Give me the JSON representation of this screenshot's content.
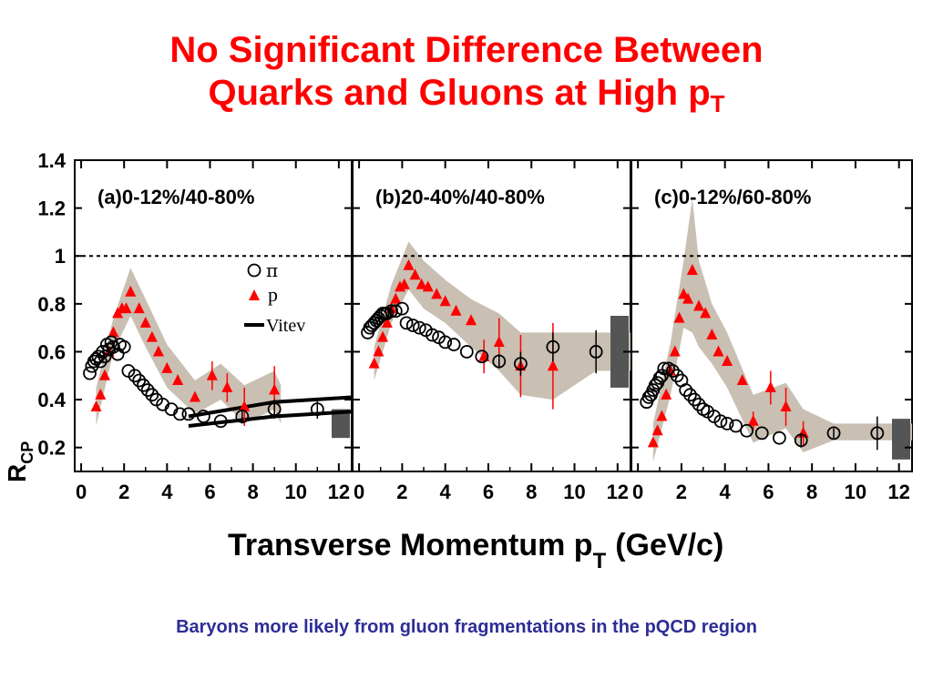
{
  "slide": {
    "title_line1": "No Significant Difference Between",
    "title_line2": "Quarks and Gluons at High p",
    "title_sub": "T",
    "footer": "Baryons more likely from gluon fragmentations in the pQCD region"
  },
  "chart_data": {
    "type": "scatter",
    "xlabel_main": "Transverse Momentum p",
    "xlabel_sub": "T",
    "xlabel_unit": "(GeV/c)",
    "ylabel_main": "R",
    "ylabel_sub": "CP",
    "xlim": [
      -0.3,
      12.6
    ],
    "ylim": [
      0.1,
      1.4
    ],
    "xticks": [
      0,
      2,
      4,
      6,
      8,
      10,
      12
    ],
    "yticks": [
      0.2,
      0.4,
      0.6,
      0.8,
      1,
      1.2,
      1.4
    ],
    "ytick_labels": [
      "0.2",
      "0.4",
      "0.6",
      "0.8",
      "1",
      "1.2",
      "1.4"
    ],
    "reference_line_y": 1.0,
    "colors": {
      "pion": "#000000",
      "proton": "#ff0000",
      "band": "#c9bfb2",
      "norm_box": "#555555",
      "vitev": "#000000"
    },
    "legend": {
      "pion_label": "π",
      "proton_label": "p",
      "vitev_label": "Vitev"
    },
    "panels": [
      {
        "label": "(a)0-12%/40-80%",
        "norm_box": [
          0.24,
          0.36
        ],
        "pion": [
          {
            "x": 0.4,
            "y": 0.51
          },
          {
            "x": 0.5,
            "y": 0.54
          },
          {
            "x": 0.6,
            "y": 0.56
          },
          {
            "x": 0.7,
            "y": 0.57
          },
          {
            "x": 0.8,
            "y": 0.58
          },
          {
            "x": 0.9,
            "y": 0.56
          },
          {
            "x": 1.0,
            "y": 0.6
          },
          {
            "x": 1.1,
            "y": 0.58
          },
          {
            "x": 1.2,
            "y": 0.63
          },
          {
            "x": 1.3,
            "y": 0.61
          },
          {
            "x": 1.4,
            "y": 0.64
          },
          {
            "x": 1.5,
            "y": 0.62
          },
          {
            "x": 1.7,
            "y": 0.59
          },
          {
            "x": 1.8,
            "y": 0.63
          },
          {
            "x": 2.0,
            "y": 0.62
          },
          {
            "x": 2.2,
            "y": 0.52
          },
          {
            "x": 2.5,
            "y": 0.5
          },
          {
            "x": 2.7,
            "y": 0.48
          },
          {
            "x": 2.9,
            "y": 0.46
          },
          {
            "x": 3.1,
            "y": 0.44
          },
          {
            "x": 3.3,
            "y": 0.42
          },
          {
            "x": 3.5,
            "y": 0.4
          },
          {
            "x": 3.8,
            "y": 0.38
          },
          {
            "x": 4.2,
            "y": 0.36
          },
          {
            "x": 4.6,
            "y": 0.34
          },
          {
            "x": 5.0,
            "y": 0.34
          },
          {
            "x": 5.7,
            "y": 0.33
          },
          {
            "x": 6.5,
            "y": 0.31
          },
          {
            "x": 7.5,
            "y": 0.33
          },
          {
            "x": 9.0,
            "y": 0.36
          },
          {
            "x": 11.0,
            "y": 0.36
          }
        ],
        "pion_err": [
          0,
          0,
          0,
          0,
          0,
          0,
          0,
          0,
          0,
          0,
          0,
          0,
          0,
          0,
          0,
          0,
          0,
          0,
          0,
          0,
          0,
          0,
          0,
          0,
          0,
          0,
          0,
          0,
          0.03,
          0.04,
          0.04
        ],
        "proton": [
          {
            "x": 0.7,
            "y": 0.37
          },
          {
            "x": 0.9,
            "y": 0.42
          },
          {
            "x": 1.1,
            "y": 0.5
          },
          {
            "x": 1.3,
            "y": 0.6
          },
          {
            "x": 1.5,
            "y": 0.68
          },
          {
            "x": 1.7,
            "y": 0.76
          },
          {
            "x": 1.9,
            "y": 0.78
          },
          {
            "x": 2.1,
            "y": 0.78
          },
          {
            "x": 2.3,
            "y": 0.85
          },
          {
            "x": 2.7,
            "y": 0.78
          },
          {
            "x": 3.0,
            "y": 0.72
          },
          {
            "x": 3.3,
            "y": 0.66
          },
          {
            "x": 3.6,
            "y": 0.6
          },
          {
            "x": 4.0,
            "y": 0.53
          },
          {
            "x": 4.5,
            "y": 0.48
          },
          {
            "x": 5.3,
            "y": 0.41
          },
          {
            "x": 6.1,
            "y": 0.5
          },
          {
            "x": 6.8,
            "y": 0.45
          },
          {
            "x": 7.6,
            "y": 0.37
          },
          {
            "x": 9.0,
            "y": 0.44
          }
        ],
        "proton_err": [
          0,
          0,
          0,
          0,
          0,
          0,
          0,
          0,
          0,
          0,
          0,
          0,
          0,
          0,
          0,
          0,
          0.06,
          0.06,
          0.08,
          0.1
        ],
        "band": [
          [
            0.7,
            0.45,
            0.29
          ],
          [
            1.5,
            0.74,
            0.6
          ],
          [
            2.3,
            0.95,
            0.75
          ],
          [
            3.0,
            0.82,
            0.62
          ],
          [
            4.0,
            0.63,
            0.45
          ],
          [
            5.3,
            0.48,
            0.34
          ],
          [
            6.5,
            0.55,
            0.4
          ],
          [
            7.6,
            0.46,
            0.3
          ],
          [
            9.0,
            0.52,
            0.36
          ],
          [
            9.3,
            0.46,
            0.3
          ]
        ],
        "vitev": {
          "upper": [
            [
              5.0,
              0.33
            ],
            [
              7.0,
              0.36
            ],
            [
              9.0,
              0.39
            ],
            [
              12.6,
              0.41
            ]
          ],
          "lower": [
            [
              5.0,
              0.29
            ],
            [
              7.0,
              0.31
            ],
            [
              9.0,
              0.33
            ],
            [
              12.6,
              0.35
            ]
          ]
        }
      },
      {
        "label": "(b)20-40%/40-80%",
        "norm_box": [
          0.45,
          0.75
        ],
        "pion": [
          {
            "x": 0.4,
            "y": 0.68
          },
          {
            "x": 0.5,
            "y": 0.7
          },
          {
            "x": 0.6,
            "y": 0.71
          },
          {
            "x": 0.7,
            "y": 0.72
          },
          {
            "x": 0.8,
            "y": 0.73
          },
          {
            "x": 0.9,
            "y": 0.74
          },
          {
            "x": 1.0,
            "y": 0.75
          },
          {
            "x": 1.1,
            "y": 0.76
          },
          {
            "x": 1.2,
            "y": 0.76
          },
          {
            "x": 1.3,
            "y": 0.76
          },
          {
            "x": 1.5,
            "y": 0.77
          },
          {
            "x": 1.7,
            "y": 0.77
          },
          {
            "x": 2.0,
            "y": 0.78
          },
          {
            "x": 2.2,
            "y": 0.72
          },
          {
            "x": 2.5,
            "y": 0.71
          },
          {
            "x": 2.8,
            "y": 0.7
          },
          {
            "x": 3.1,
            "y": 0.69
          },
          {
            "x": 3.4,
            "y": 0.67
          },
          {
            "x": 3.7,
            "y": 0.66
          },
          {
            "x": 4.0,
            "y": 0.64
          },
          {
            "x": 4.4,
            "y": 0.63
          },
          {
            "x": 5.0,
            "y": 0.6
          },
          {
            "x": 5.7,
            "y": 0.58
          },
          {
            "x": 6.5,
            "y": 0.56
          },
          {
            "x": 7.5,
            "y": 0.55
          },
          {
            "x": 9.0,
            "y": 0.62
          },
          {
            "x": 11.0,
            "y": 0.6
          }
        ],
        "pion_err": [
          0,
          0,
          0,
          0,
          0,
          0,
          0,
          0,
          0,
          0,
          0,
          0,
          0,
          0,
          0,
          0,
          0,
          0,
          0,
          0,
          0,
          0,
          0,
          0.03,
          0.05,
          0.06,
          0.09
        ],
        "proton": [
          {
            "x": 0.7,
            "y": 0.55
          },
          {
            "x": 0.9,
            "y": 0.6
          },
          {
            "x": 1.1,
            "y": 0.66
          },
          {
            "x": 1.3,
            "y": 0.72
          },
          {
            "x": 1.5,
            "y": 0.78
          },
          {
            "x": 1.7,
            "y": 0.82
          },
          {
            "x": 1.9,
            "y": 0.87
          },
          {
            "x": 2.1,
            "y": 0.88
          },
          {
            "x": 2.3,
            "y": 0.96
          },
          {
            "x": 2.6,
            "y": 0.92
          },
          {
            "x": 2.9,
            "y": 0.88
          },
          {
            "x": 3.2,
            "y": 0.87
          },
          {
            "x": 3.6,
            "y": 0.84
          },
          {
            "x": 4.0,
            "y": 0.81
          },
          {
            "x": 4.5,
            "y": 0.77
          },
          {
            "x": 5.2,
            "y": 0.73
          },
          {
            "x": 5.8,
            "y": 0.58
          },
          {
            "x": 6.5,
            "y": 0.64
          },
          {
            "x": 7.5,
            "y": 0.54
          },
          {
            "x": 9.0,
            "y": 0.54
          }
        ],
        "proton_err": [
          0,
          0,
          0,
          0,
          0,
          0,
          0,
          0,
          0,
          0,
          0,
          0,
          0,
          0,
          0,
          0,
          0.07,
          0.1,
          0.13,
          0.18
        ],
        "band": [
          [
            0.7,
            0.62,
            0.48
          ],
          [
            1.5,
            0.88,
            0.72
          ],
          [
            2.3,
            1.06,
            0.86
          ],
          [
            3.0,
            0.98,
            0.78
          ],
          [
            4.0,
            0.9,
            0.72
          ],
          [
            5.2,
            0.82,
            0.62
          ],
          [
            6.5,
            0.76,
            0.52
          ],
          [
            7.5,
            0.68,
            0.42
          ],
          [
            9.0,
            0.68,
            0.4
          ],
          [
            11.0,
            0.68,
            0.52
          ],
          [
            12.6,
            0.68,
            0.52
          ]
        ]
      },
      {
        "label": "(c)0-12%/60-80%",
        "norm_box": [
          0.15,
          0.32
        ],
        "pion": [
          {
            "x": 0.4,
            "y": 0.39
          },
          {
            "x": 0.5,
            "y": 0.41
          },
          {
            "x": 0.6,
            "y": 0.42
          },
          {
            "x": 0.7,
            "y": 0.44
          },
          {
            "x": 0.8,
            "y": 0.46
          },
          {
            "x": 0.9,
            "y": 0.47
          },
          {
            "x": 1.0,
            "y": 0.49
          },
          {
            "x": 1.1,
            "y": 0.5
          },
          {
            "x": 1.2,
            "y": 0.53
          },
          {
            "x": 1.4,
            "y": 0.53
          },
          {
            "x": 1.6,
            "y": 0.52
          },
          {
            "x": 1.8,
            "y": 0.5
          },
          {
            "x": 2.0,
            "y": 0.48
          },
          {
            "x": 2.2,
            "y": 0.44
          },
          {
            "x": 2.4,
            "y": 0.42
          },
          {
            "x": 2.6,
            "y": 0.4
          },
          {
            "x": 2.8,
            "y": 0.38
          },
          {
            "x": 3.0,
            "y": 0.36
          },
          {
            "x": 3.2,
            "y": 0.35
          },
          {
            "x": 3.5,
            "y": 0.33
          },
          {
            "x": 3.8,
            "y": 0.31
          },
          {
            "x": 4.1,
            "y": 0.3
          },
          {
            "x": 4.5,
            "y": 0.29
          },
          {
            "x": 5.0,
            "y": 0.27
          },
          {
            "x": 5.7,
            "y": 0.26
          },
          {
            "x": 6.5,
            "y": 0.24
          },
          {
            "x": 7.5,
            "y": 0.23
          },
          {
            "x": 9.0,
            "y": 0.26
          },
          {
            "x": 11.0,
            "y": 0.26
          }
        ],
        "pion_err": [
          0,
          0,
          0,
          0,
          0,
          0,
          0,
          0,
          0,
          0,
          0,
          0,
          0,
          0,
          0,
          0,
          0,
          0,
          0,
          0,
          0,
          0,
          0,
          0,
          0,
          0,
          0.03,
          0.02,
          0.07
        ],
        "proton": [
          {
            "x": 0.7,
            "y": 0.22
          },
          {
            "x": 0.9,
            "y": 0.27
          },
          {
            "x": 1.1,
            "y": 0.33
          },
          {
            "x": 1.3,
            "y": 0.42
          },
          {
            "x": 1.5,
            "y": 0.52
          },
          {
            "x": 1.7,
            "y": 0.6
          },
          {
            "x": 1.9,
            "y": 0.74
          },
          {
            "x": 2.1,
            "y": 0.84
          },
          {
            "x": 2.3,
            "y": 0.82
          },
          {
            "x": 2.5,
            "y": 0.94
          },
          {
            "x": 2.8,
            "y": 0.79
          },
          {
            "x": 3.1,
            "y": 0.76
          },
          {
            "x": 3.4,
            "y": 0.67
          },
          {
            "x": 3.7,
            "y": 0.6
          },
          {
            "x": 4.1,
            "y": 0.56
          },
          {
            "x": 4.8,
            "y": 0.48
          },
          {
            "x": 5.3,
            "y": 0.31
          },
          {
            "x": 6.1,
            "y": 0.45
          },
          {
            "x": 6.8,
            "y": 0.37
          },
          {
            "x": 7.6,
            "y": 0.26
          }
        ],
        "proton_err": [
          0,
          0,
          0,
          0,
          0,
          0,
          0,
          0,
          0,
          0,
          0,
          0,
          0,
          0,
          0,
          0,
          0.04,
          0.07,
          0.08,
          0.05
        ],
        "band": [
          [
            0.7,
            0.3,
            0.14
          ],
          [
            1.5,
            0.64,
            0.42
          ],
          [
            2.1,
            0.98,
            0.7
          ],
          [
            2.5,
            1.24,
            0.68
          ],
          [
            2.8,
            0.98,
            0.62
          ],
          [
            3.4,
            0.8,
            0.55
          ],
          [
            4.1,
            0.68,
            0.45
          ],
          [
            5.3,
            0.42,
            0.22
          ],
          [
            6.8,
            0.47,
            0.28
          ],
          [
            7.6,
            0.36,
            0.18
          ],
          [
            9.0,
            0.3,
            0.23
          ],
          [
            12.6,
            0.3,
            0.23
          ]
        ]
      }
    ]
  }
}
